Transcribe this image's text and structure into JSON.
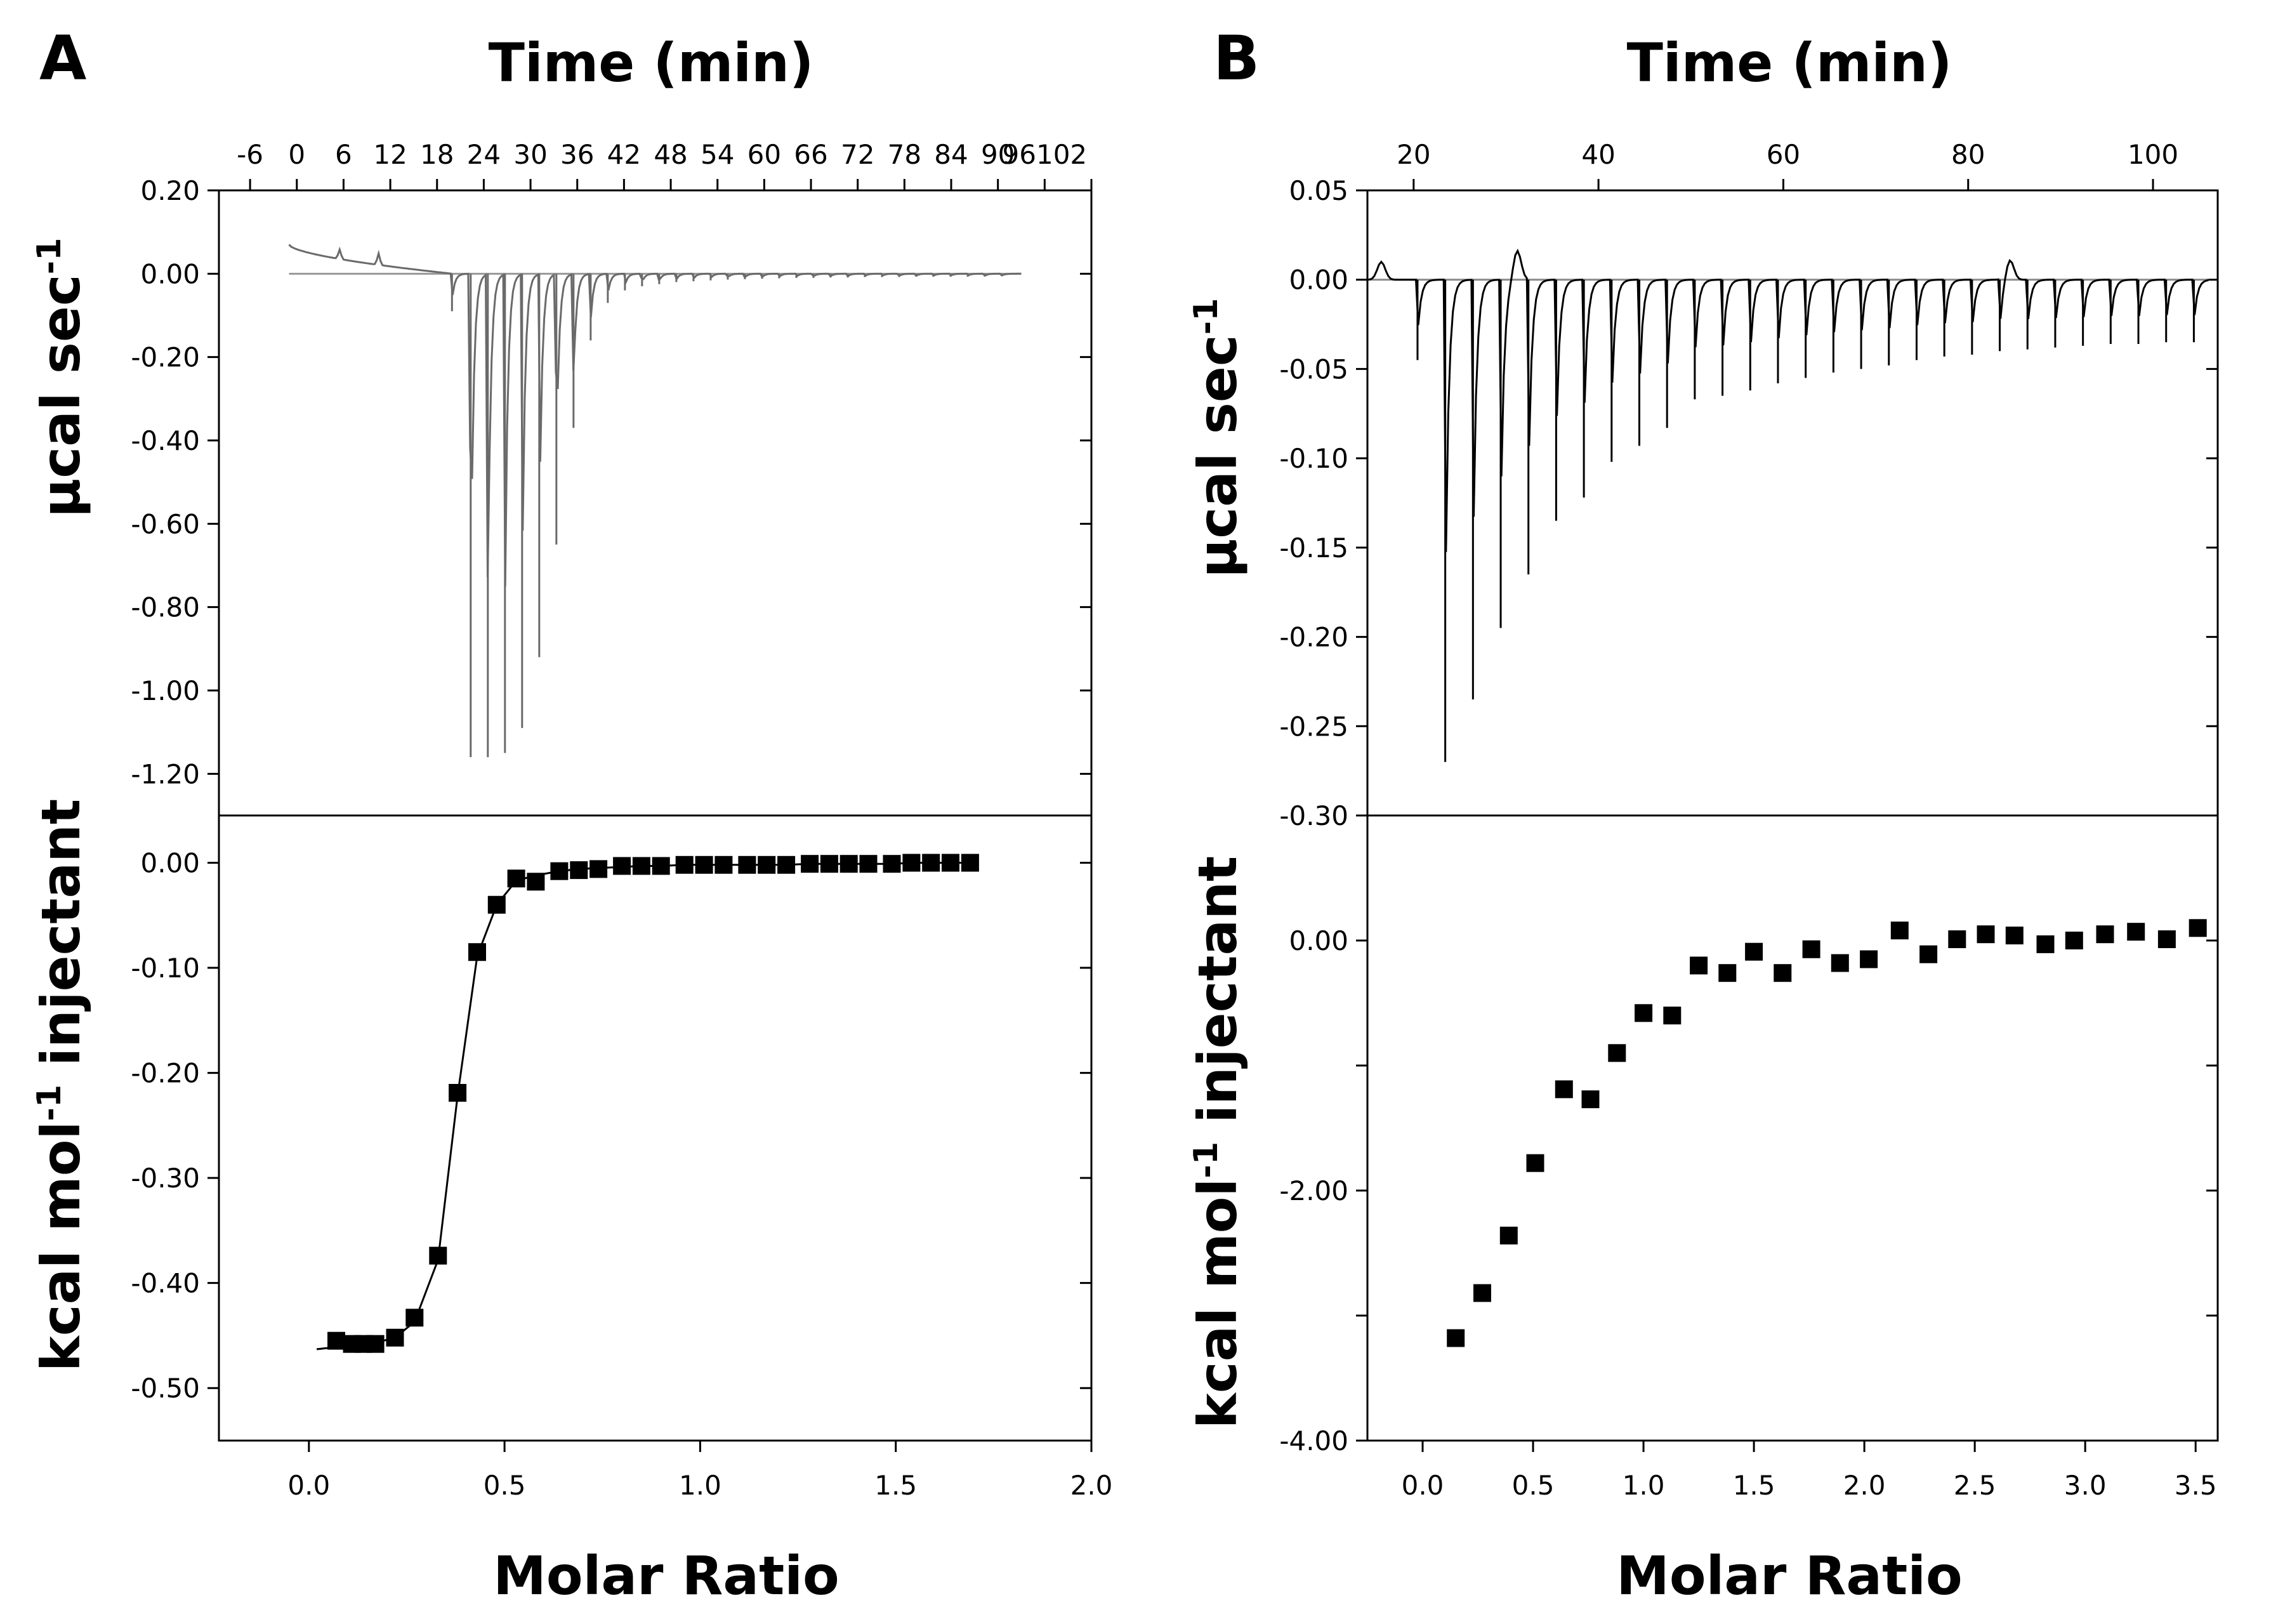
{
  "chart_data": [
    {
      "id": "A-top",
      "panel_label": "A",
      "type": "line",
      "title": "Time (min)",
      "xlabel": "Time (min)",
      "ylabel": "µcal sec",
      "ylabel_sup": "-1",
      "xlim": [
        -10,
        102
      ],
      "ylim": [
        -1.3,
        0.2
      ],
      "xticks": [
        -6,
        0,
        6,
        12,
        18,
        24,
        30,
        36,
        42,
        48,
        54,
        60,
        66,
        72,
        78,
        84,
        90,
        96,
        102
      ],
      "xtick_labels": [
        "-6",
        "0",
        "6",
        "12",
        "18",
        "24",
        "30",
        "36",
        "42",
        "48",
        "54",
        "60",
        "66",
        "72",
        "78",
        "84",
        "90",
        "96102"
      ],
      "yticks": [
        0.2,
        0.0,
        -0.2,
        -0.4,
        -0.6,
        -0.8,
        -1.0,
        -1.2
      ],
      "ytick_labels": [
        "0.20",
        "0.00",
        "-0.20",
        "-0.40",
        "-0.60",
        "-0.80",
        "-1.00",
        "-1.20"
      ],
      "baseline": 0.0,
      "trace_color": "#6a6a6a",
      "trace_range": [
        -1,
        93
      ],
      "drift": {
        "start_x": -1,
        "start_y": 0.07,
        "end_x": 20,
        "end_y": 0.0
      },
      "injections": {
        "x": [
          19.8,
          22.2,
          24.4,
          26.6,
          28.8,
          31.0,
          33.2,
          35.4,
          37.6,
          39.8,
          42.0,
          44.2,
          46.4,
          48.6,
          50.8,
          53.0,
          55.2,
          57.4,
          59.6,
          61.8,
          64.0,
          66.2,
          68.4,
          70.6,
          72.8,
          75.0,
          77.2,
          79.4,
          81.6,
          83.8,
          86.0,
          88.2,
          90.4
        ],
        "depth": [
          -0.09,
          -1.16,
          -1.16,
          -1.15,
          -1.09,
          -0.92,
          -0.65,
          -0.37,
          -0.16,
          -0.07,
          -0.04,
          -0.03,
          -0.025,
          -0.02,
          -0.018,
          -0.016,
          -0.014,
          -0.013,
          -0.012,
          -0.011,
          -0.01,
          -0.01,
          -0.009,
          -0.009,
          -0.008,
          -0.008,
          -0.008,
          -0.007,
          -0.007,
          -0.007,
          -0.007,
          -0.007,
          -0.006
        ]
      },
      "spikes": [
        {
          "x": 5.5,
          "y": 0.045
        },
        {
          "x": 10.5,
          "y": 0.055
        }
      ]
    },
    {
      "id": "A-bottom",
      "type": "scatter",
      "xlabel": "Molar Ratio",
      "ylabel": "kcal mol",
      "ylabel_sup": "-1",
      "ylabel_tail": " injectant",
      "xlim": [
        -0.23,
        2.0
      ],
      "ylim": [
        -0.55,
        0.045
      ],
      "xticks": [
        0.0,
        0.5,
        1.0,
        1.5,
        2.0
      ],
      "xtick_labels": [
        "0.0",
        "0.5",
        "1.0",
        "1.5",
        "2.0"
      ],
      "yticks": [
        0.0,
        -0.1,
        -0.2,
        -0.3,
        -0.4,
        -0.5
      ],
      "ytick_labels": [
        "0.00",
        "-0.10",
        "-0.20",
        "-0.30",
        "-0.40",
        "-0.50"
      ],
      "fit_line": true,
      "x": [
        0.07,
        0.11,
        0.14,
        0.17,
        0.22,
        0.27,
        0.33,
        0.38,
        0.43,
        0.48,
        0.53,
        0.58,
        0.64,
        0.69,
        0.74,
        0.8,
        0.85,
        0.9,
        0.96,
        1.01,
        1.06,
        1.12,
        1.17,
        1.22,
        1.28,
        1.33,
        1.38,
        1.43,
        1.49,
        1.54,
        1.59,
        1.64,
        1.69
      ],
      "y": [
        -0.455,
        -0.458,
        -0.458,
        -0.458,
        -0.452,
        -0.433,
        -0.374,
        -0.219,
        -0.085,
        -0.04,
        -0.015,
        -0.018,
        -0.008,
        -0.007,
        -0.006,
        -0.003,
        -0.003,
        -0.003,
        -0.002,
        -0.002,
        -0.002,
        -0.002,
        -0.002,
        -0.002,
        -0.001,
        -0.001,
        -0.001,
        -0.001,
        -0.001,
        0.0,
        0.0,
        0.0,
        0.0
      ],
      "fit": {
        "x": [
          0.02,
          0.07,
          0.11,
          0.14,
          0.17,
          0.22,
          0.27,
          0.33,
          0.38,
          0.43,
          0.48,
          0.53,
          0.58,
          0.64,
          0.69,
          0.74,
          0.8,
          0.85,
          0.9,
          0.96,
          1.01,
          1.06,
          1.12,
          1.17,
          1.22,
          1.28,
          1.33,
          1.38,
          1.43,
          1.49,
          1.54,
          1.59,
          1.64,
          1.69
        ],
        "y": [
          -0.463,
          -0.461,
          -0.459,
          -0.458,
          -0.457,
          -0.452,
          -0.437,
          -0.378,
          -0.222,
          -0.089,
          -0.04,
          -0.017,
          -0.012,
          -0.008,
          -0.006,
          -0.005,
          -0.004,
          -0.003,
          -0.003,
          -0.002,
          -0.002,
          -0.002,
          -0.002,
          -0.002,
          -0.002,
          -0.001,
          -0.001,
          -0.001,
          -0.001,
          -0.001,
          0.0,
          0.0,
          0.0,
          0.0
        ]
      }
    },
    {
      "id": "B-top",
      "panel_label": "B",
      "type": "line",
      "title": "Time (min)",
      "xlabel": "Time (min)",
      "ylabel": "µcal sec",
      "ylabel_sup": "-1",
      "xlim": [
        15,
        107
      ],
      "ylim": [
        -0.3,
        0.05
      ],
      "xticks": [
        20,
        40,
        60,
        80,
        100
      ],
      "xtick_labels": [
        "20",
        "40",
        "60",
        "80",
        "100"
      ],
      "yticks": [
        0.05,
        0.0,
        -0.05,
        -0.1,
        -0.15,
        -0.2,
        -0.25,
        -0.3
      ],
      "ytick_labels": [
        "0.05",
        "0.00",
        "-0.05",
        "-0.10",
        "-0.15",
        "-0.20",
        "-0.25",
        "-0.30"
      ],
      "baseline": 0.0,
      "trace_color": "#000000",
      "trace_range": [
        15,
        106
      ],
      "injections": {
        "x": [
          20.3,
          23.3,
          26.3,
          29.3,
          32.3,
          35.3,
          38.3,
          41.3,
          44.3,
          47.3,
          50.3,
          53.3,
          56.3,
          59.3,
          62.3,
          65.3,
          68.3,
          71.3,
          74.3,
          77.3,
          80.3,
          83.3,
          86.3,
          89.3,
          92.3,
          95.3,
          98.3,
          101.3,
          104.3
        ],
        "depth": [
          -0.045,
          -0.27,
          -0.235,
          -0.195,
          -0.165,
          -0.135,
          -0.122,
          -0.102,
          -0.093,
          -0.083,
          -0.067,
          -0.065,
          -0.062,
          -0.058,
          -0.055,
          -0.052,
          -0.05,
          -0.048,
          -0.045,
          -0.043,
          -0.042,
          -0.04,
          -0.039,
          -0.038,
          -0.037,
          -0.036,
          -0.036,
          -0.035,
          -0.035
        ]
      },
      "bumps": [
        {
          "x": 31.2,
          "y": 0.017
        },
        {
          "x": 84.5,
          "y": 0.012
        },
        {
          "x": 16.5,
          "y": 0.01
        }
      ]
    },
    {
      "id": "B-bottom",
      "type": "scatter",
      "xlabel": "Molar Ratio",
      "ylabel": "kcal mol",
      "ylabel_sup": "-1",
      "ylabel_tail": " injectant",
      "xlim": [
        -0.25,
        3.6
      ],
      "ylim": [
        -4.0,
        1.0
      ],
      "xticks": [
        0.0,
        0.5,
        1.0,
        1.5,
        2.0,
        2.5,
        3.0,
        3.5
      ],
      "xtick_labels": [
        "0.0",
        "0.5",
        "1.0",
        "1.5",
        "2.0",
        "2.5",
        "3.0",
        "3.5"
      ],
      "yticks": [
        0.0,
        -2.0,
        -4.0
      ],
      "ytick_labels": [
        "0.00",
        "-2.00",
        "-4.00"
      ],
      "minor_yticks": [
        1.0,
        -1.0,
        -3.0
      ],
      "fit_line": false,
      "x": [
        0.15,
        0.27,
        0.39,
        0.51,
        0.64,
        0.76,
        0.88,
        1.0,
        1.13,
        1.25,
        1.38,
        1.5,
        1.63,
        1.76,
        1.89,
        2.02,
        2.16,
        2.29,
        2.42,
        2.55,
        2.68,
        2.82,
        2.95,
        3.09,
        3.23,
        3.37,
        3.51
      ],
      "y": [
        -3.18,
        -2.82,
        -2.36,
        -1.78,
        -1.19,
        -1.27,
        -0.9,
        -0.58,
        -0.6,
        -0.2,
        -0.26,
        -0.09,
        -0.26,
        -0.07,
        -0.18,
        -0.15,
        0.08,
        -0.11,
        0.01,
        0.05,
        0.04,
        -0.03,
        0.0,
        0.05,
        0.07,
        0.01,
        0.1
      ]
    }
  ]
}
